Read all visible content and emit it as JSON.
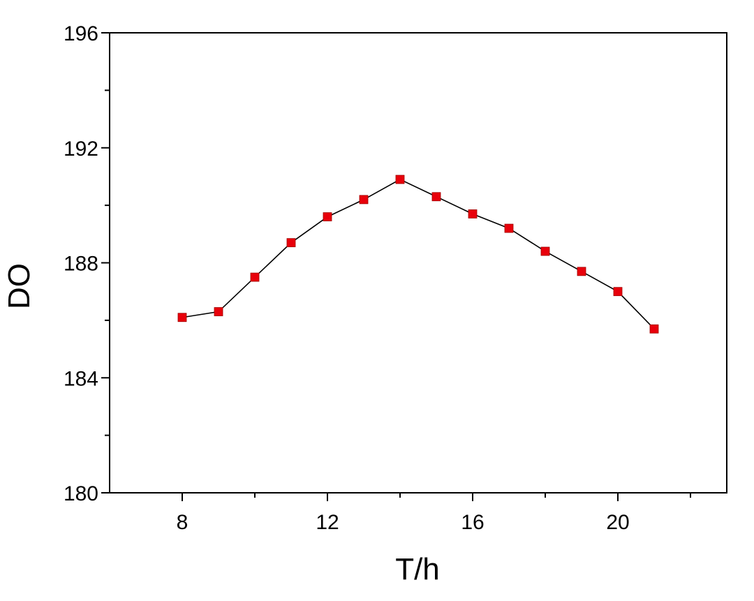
{
  "chart_data": {
    "type": "line",
    "x_label": "T/h",
    "y_label": "DO",
    "x": [
      8,
      9,
      10,
      11,
      12,
      13,
      14,
      15,
      16,
      17,
      18,
      19,
      20,
      21
    ],
    "series": [
      {
        "color": "#e8000b",
        "values": [
          186.1,
          186.3,
          187.5,
          188.7,
          189.6,
          190.2,
          190.9,
          190.3,
          189.7,
          189.2,
          188.4,
          187.7,
          187.0,
          185.7
        ]
      }
    ],
    "xlim": [
      6,
      23
    ],
    "xticks": [
      8,
      12,
      16,
      20
    ],
    "ylim": [
      180,
      196
    ],
    "yticks": [
      180,
      184,
      188,
      192,
      196
    ]
  }
}
